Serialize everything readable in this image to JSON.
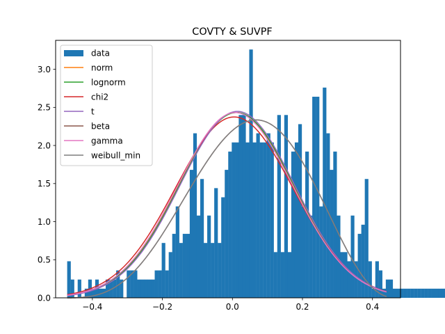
{
  "chart_data": {
    "type": "bar",
    "title": "COVTY & SUVPF",
    "xlabel": "",
    "ylabel": "",
    "xlim": [
      -0.505,
      0.48
    ],
    "ylim": [
      0,
      3.38
    ],
    "xticks": [
      -0.4,
      -0.2,
      0.0,
      0.2,
      0.4
    ],
    "xtick_labels": [
      "−0.4",
      "−0.2",
      "0.0",
      "0.2",
      "0.4"
    ],
    "yticks": [
      0.0,
      0.5,
      1.0,
      1.5,
      2.0,
      2.5,
      3.0
    ],
    "ytick_labels": [
      "0.0",
      "0.5",
      "1.0",
      "1.5",
      "2.0",
      "2.5",
      "3.0"
    ],
    "grid": false,
    "legend_position": "top-left",
    "histogram": {
      "name": "data",
      "color": "#1f77b4",
      "bin_start": -0.472,
      "bin_width": 0.01,
      "values": [
        0.48,
        0.24,
        0.0,
        0.24,
        0.0,
        0.12,
        0.24,
        0.12,
        0.24,
        0.12,
        0.12,
        0.24,
        0.24,
        0.24,
        0.36,
        0.24,
        0.0,
        0.36,
        0.36,
        0.36,
        0.24,
        0.24,
        0.24,
        0.24,
        0.24,
        0.36,
        0.36,
        0.72,
        0.36,
        0.6,
        0.84,
        1.2,
        0.72,
        0.84,
        0.84,
        1.68,
        2.16,
        1.08,
        1.56,
        0.72,
        1.08,
        0.72,
        1.44,
        0.72,
        1.32,
        1.68,
        1.92,
        2.04,
        2.04,
        2.4,
        2.4,
        2.04,
        3.26,
        2.04,
        2.16,
        2.04,
        2.04,
        2.16,
        2.04,
        0.6,
        2.4,
        0.6,
        2.4,
        0.6,
        1.92,
        2.04,
        2.28,
        1.2,
        1.92,
        1.08,
        2.64,
        2.64,
        1.2,
        2.76,
        2.16,
        1.68,
        1.92,
        1.08,
        0.6,
        0.6,
        0.48,
        1.08,
        0.48,
        0.84,
        0.96,
        1.56,
        0.48,
        0.12,
        0.48,
        0.36,
        0.12,
        0.24,
        0.24,
        0.12,
        0.12,
        0.12,
        0.12,
        0.12,
        0.12,
        0.12,
        0.12,
        0.12,
        0.12,
        0.12,
        0.12,
        0.12,
        0.12,
        0.12,
        0.36
      ]
    },
    "series": [
      {
        "name": "norm",
        "color": "#ff7f0e",
        "dist": "normal",
        "mu": 0.01,
        "sigma": 0.164,
        "width": 1.5
      },
      {
        "name": "lognorm",
        "color": "#2ca02c",
        "dist": "normal",
        "mu": 0.012,
        "sigma": 0.164,
        "width": 1.5
      },
      {
        "name": "chi2",
        "color": "#d62728",
        "dist": "normal",
        "mu": 0.005,
        "sigma": 0.168,
        "width": 1.5
      },
      {
        "name": "t",
        "color": "#9467bd",
        "dist": "normal",
        "mu": 0.014,
        "sigma": 0.163,
        "width": 1.5
      },
      {
        "name": "beta",
        "color": "#8c564b",
        "dist": "beta",
        "a": 4.6,
        "b": 3.6,
        "lo": -0.49,
        "hi": 0.47,
        "width": 1.5
      },
      {
        "name": "gamma",
        "color": "#e377c2",
        "dist": "normal",
        "mu": 0.008,
        "sigma": 0.164,
        "width": 1.5
      },
      {
        "name": "weibull_min",
        "color": "#7f7f7f",
        "dist": "beta",
        "a": 4.6,
        "b": 3.6,
        "lo": -0.49,
        "hi": 0.47,
        "width": 1.5
      }
    ]
  }
}
